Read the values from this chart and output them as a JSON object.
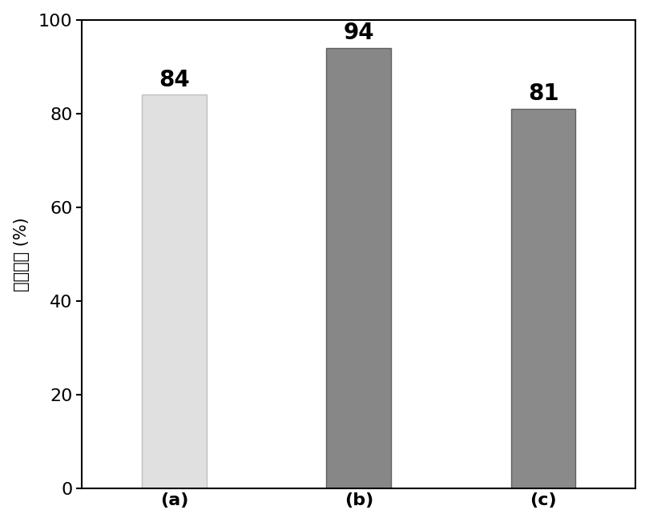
{
  "categories": [
    "(a)",
    "(b)",
    "(c)"
  ],
  "values": [
    84,
    94,
    81
  ],
  "bar_colors": [
    "#e0e0e0",
    "#878787",
    "#8a8a8a"
  ],
  "bar_edge_colors": [
    "#c0c0c0",
    "#606060",
    "#606060"
  ],
  "ylabel": "量子效率 (%)",
  "ylim": [
    0,
    100
  ],
  "yticks": [
    0,
    20,
    40,
    60,
    80,
    100
  ],
  "bar_width": 0.35,
  "value_fontsize": 20,
  "ylabel_fontsize": 15,
  "xlabel_fontsize": 16,
  "tick_fontsize": 16,
  "background_color": "#ffffff",
  "figure_background": "#ffffff"
}
